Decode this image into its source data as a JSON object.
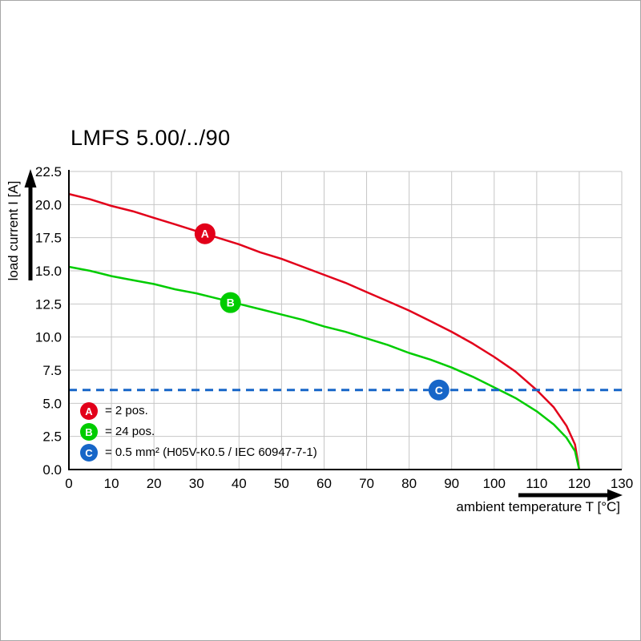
{
  "chart": {
    "title": "LMFS 5.00/../90",
    "y_axis_label": "load current I [A]",
    "x_axis_label": "ambient temperature T [°C]",
    "x_ticks": [
      0,
      10,
      20,
      30,
      40,
      50,
      60,
      70,
      80,
      90,
      100,
      110,
      120,
      130
    ],
    "y_tick_labels": [
      "22.5",
      "20.0",
      "17.5",
      "15.0",
      "12.5",
      "10.0",
      "7.5",
      "5.0",
      "2.5",
      "0.0"
    ]
  },
  "colors": {
    "red": "#e2001a",
    "green": "#00cc00",
    "blue": "#1766c8",
    "grid": "#c6c6c6",
    "axis": "#000000"
  },
  "chart_data": {
    "type": "line",
    "title": "LMFS 5.00/../90",
    "xlabel": "ambient temperature T [°C]",
    "ylabel": "load current I [A]",
    "xlim": [
      0,
      130
    ],
    "ylim": [
      0,
      22.5
    ],
    "grid": true,
    "legend_position": "lower-left-inside",
    "series": [
      {
        "name": "A",
        "label": "= 2 pos.",
        "color": "#e2001a",
        "style": "solid",
        "points": [
          [
            0,
            20.8
          ],
          [
            5,
            20.4
          ],
          [
            10,
            19.9
          ],
          [
            15,
            19.5
          ],
          [
            20,
            19.0
          ],
          [
            25,
            18.5
          ],
          [
            30,
            18.0
          ],
          [
            35,
            17.5
          ],
          [
            40,
            17.0
          ],
          [
            45,
            16.4
          ],
          [
            50,
            15.9
          ],
          [
            55,
            15.3
          ],
          [
            60,
            14.7
          ],
          [
            65,
            14.1
          ],
          [
            70,
            13.4
          ],
          [
            75,
            12.7
          ],
          [
            80,
            12.0
          ],
          [
            85,
            11.2
          ],
          [
            90,
            10.4
          ],
          [
            95,
            9.5
          ],
          [
            100,
            8.5
          ],
          [
            105,
            7.4
          ],
          [
            110,
            6.0
          ],
          [
            114,
            4.7
          ],
          [
            117,
            3.3
          ],
          [
            119,
            1.9
          ],
          [
            120,
            0
          ]
        ]
      },
      {
        "name": "B",
        "label": "= 24 pos.",
        "color": "#00cc00",
        "style": "solid",
        "points": [
          [
            0,
            15.3
          ],
          [
            5,
            15.0
          ],
          [
            10,
            14.6
          ],
          [
            15,
            14.3
          ],
          [
            20,
            14.0
          ],
          [
            25,
            13.6
          ],
          [
            30,
            13.3
          ],
          [
            35,
            12.9
          ],
          [
            40,
            12.5
          ],
          [
            45,
            12.1
          ],
          [
            50,
            11.7
          ],
          [
            55,
            11.3
          ],
          [
            60,
            10.8
          ],
          [
            65,
            10.4
          ],
          [
            70,
            9.9
          ],
          [
            75,
            9.4
          ],
          [
            80,
            8.8
          ],
          [
            85,
            8.3
          ],
          [
            90,
            7.7
          ],
          [
            95,
            7.0
          ],
          [
            100,
            6.2
          ],
          [
            105,
            5.4
          ],
          [
            110,
            4.4
          ],
          [
            114,
            3.4
          ],
          [
            117,
            2.4
          ],
          [
            119,
            1.4
          ],
          [
            120,
            0
          ]
        ]
      },
      {
        "name": "C",
        "label": "= 0.5 mm² (H05V-K0.5 / IEC 60947-7-1)",
        "color": "#1766c8",
        "style": "dashed",
        "points": [
          [
            0,
            6
          ],
          [
            130,
            6
          ]
        ]
      }
    ],
    "markers": [
      {
        "letter": "A",
        "color": "#e2001a",
        "x": 32,
        "y": 17.8
      },
      {
        "letter": "B",
        "color": "#00cc00",
        "x": 38,
        "y": 12.6
      },
      {
        "letter": "C",
        "color": "#1766c8",
        "x": 87,
        "y": 6.0
      }
    ],
    "legend": [
      {
        "letter": "A",
        "color": "#e2001a",
        "text": "= 2 pos."
      },
      {
        "letter": "B",
        "color": "#00cc00",
        "text": "= 24 pos."
      },
      {
        "letter": "C",
        "color": "#1766c8",
        "text": "= 0.5 mm² (H05V-K0.5 / IEC 60947-7-1)"
      }
    ]
  }
}
